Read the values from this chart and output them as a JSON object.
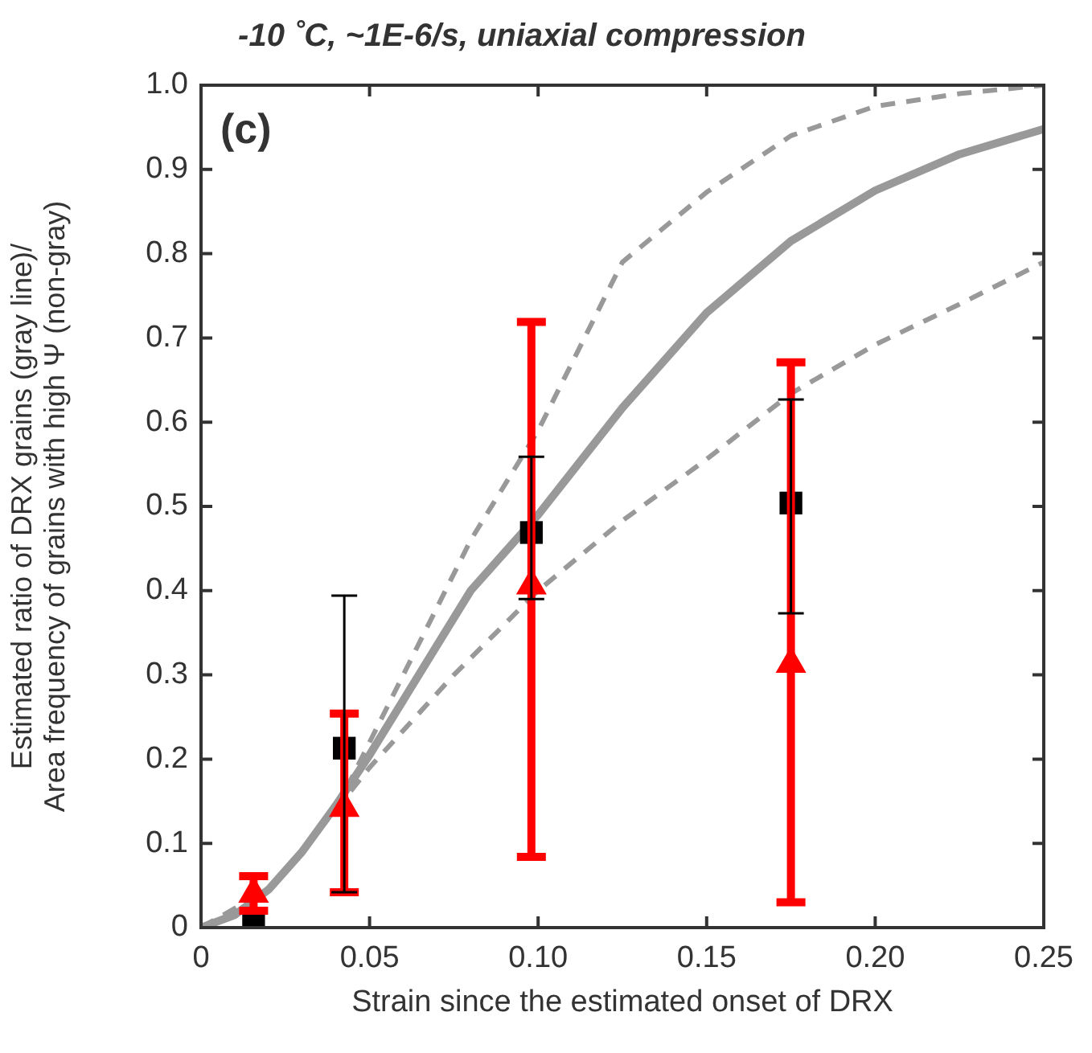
{
  "chart_data": {
    "type": "scatter",
    "title": "-10 ˚C, ~1E-6/s, uniaxial compression",
    "xlabel": "Strain since the estimated onset of DRX",
    "ylabel": "Estimated ratio of DRX grains (gray line)/\nArea frequency of grains with high Ψ (non-gray)",
    "annotations": [
      "(c)"
    ],
    "xlim": [
      0,
      0.25
    ],
    "xticks": [
      0,
      {
        "value": 0.05,
        "label": "0.05"
      },
      {
        "value": 0.1,
        "label": "0.10"
      },
      {
        "value": 0.15,
        "label": "0.15"
      },
      {
        "value": 0.2,
        "label": "0.20"
      },
      {
        "value": 0.25,
        "label": "0.25"
      }
    ],
    "ylim": [
      0,
      1
    ],
    "yticks": [
      0,
      0.1,
      0.2,
      0.3,
      0.4,
      0.5,
      0.6,
      0.7,
      0.8,
      0.9,
      {
        "value": 1,
        "label": "1.0"
      }
    ],
    "grid": false,
    "legend": false,
    "series": [
      {
        "type": "line",
        "color": "#999999",
        "line_style": "solid",
        "marker": "none",
        "x": [
          0,
          0.01,
          0.02,
          0.03,
          0.04,
          0.05,
          0.06,
          0.07,
          0.08,
          0.09,
          0.1,
          0.125,
          0.15,
          0.175,
          0.2,
          0.225,
          0.25
        ],
        "values": [
          0,
          0.015,
          0.045,
          0.09,
          0.145,
          0.205,
          0.27,
          0.335,
          0.4,
          0.445,
          0.49,
          0.617,
          0.73,
          0.815,
          0.875,
          0.918,
          0.948
        ]
      },
      {
        "type": "line",
        "color": "#999999",
        "line_style": "dashed",
        "marker": "none",
        "x": [
          0,
          0.02,
          0.04,
          0.06,
          0.08,
          0.1,
          0.125,
          0.15,
          0.175,
          0.2,
          0.225,
          0.25
        ],
        "values": [
          0,
          0.045,
          0.14,
          0.3,
          0.46,
          0.59,
          0.79,
          0.873,
          0.94,
          0.975,
          0.99,
          1
        ]
      },
      {
        "type": "line",
        "color": "#999999",
        "line_style": "dashed",
        "marker": "none",
        "x": [
          0,
          0.02,
          0.04,
          0.05,
          0.075,
          0.1,
          0.125,
          0.15,
          0.175,
          0.2,
          0.225,
          0.25
        ],
        "values": [
          0,
          0.045,
          0.14,
          0.19,
          0.3,
          0.4,
          0.483,
          0.556,
          0.634,
          0.692,
          0.74,
          0.79
        ]
      },
      {
        "color": "#ff0000",
        "marker": "triangle",
        "x": [
          0.0156,
          0.0425,
          0.098,
          0.175
        ],
        "values": [
          0.04,
          0.142,
          0.406,
          0.313
        ],
        "errors": [
          [
            0.02,
            0.061
          ],
          [
            0.042,
            0.254
          ],
          [
            0.084,
            0.719
          ],
          [
            0.03,
            0.671
          ]
        ]
      },
      {
        "color": "#000000",
        "marker": "square",
        "x": [
          0.0156,
          0.0425,
          0.098,
          0.175
        ],
        "values": [
          0.01,
          0.213,
          0.469,
          0.504
        ],
        "errors": [
          null,
          [
            0.042,
            0.394
          ],
          [
            0.39,
            0.559
          ],
          [
            0.373,
            0.627
          ]
        ]
      }
    ]
  }
}
